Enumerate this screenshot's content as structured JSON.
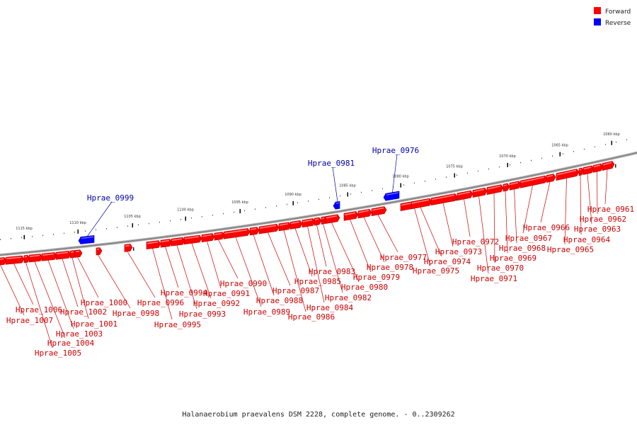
{
  "legend": [
    {
      "label": "Forward",
      "color": "#ff0000"
    },
    {
      "label": "Reverse",
      "color": "#0000ff"
    }
  ],
  "caption": "Halanaerobium praevalens DSM 2228, complete genome. - 0..2309262",
  "colors": {
    "forward": "#ff0000",
    "reverse": "#0000ff",
    "backbone": "#888888",
    "tick": "#000000",
    "label_forward": "#cc0000",
    "label_reverse": "#0000aa"
  },
  "ticks": [
    "1115 kbp",
    "1110 kbp",
    "1105 kbp",
    "1100 kbp",
    "1095 kbp",
    "1090 kbp",
    "1085 kbp",
    "1080 kbp",
    "1075 kbp",
    "1070 kbp",
    "1065 kbp",
    "1060 kbp"
  ],
  "genes": [
    {
      "label": "Hprae_1007",
      "strand": "forward"
    },
    {
      "label": "Hprae_1006",
      "strand": "forward"
    },
    {
      "label": "Hprae_1005",
      "strand": "forward"
    },
    {
      "label": "Hprae_1004",
      "strand": "forward"
    },
    {
      "label": "Hprae_1003",
      "strand": "forward"
    },
    {
      "label": "Hprae_1002",
      "strand": "forward"
    },
    {
      "label": "Hprae_1001",
      "strand": "forward"
    },
    {
      "label": "Hprae_1000",
      "strand": "forward"
    },
    {
      "label": "Hprae_0999",
      "strand": "reverse"
    },
    {
      "label": "Hprae_0998",
      "strand": "forward"
    },
    {
      "label": "Hprae_0996",
      "strand": "forward"
    },
    {
      "label": "Hprae_0995",
      "strand": "forward"
    },
    {
      "label": "Hprae_0994",
      "strand": "forward"
    },
    {
      "label": "Hprae_0993",
      "strand": "forward"
    },
    {
      "label": "Hprae_0992",
      "strand": "forward"
    },
    {
      "label": "Hprae_0991",
      "strand": "forward"
    },
    {
      "label": "Hprae_0990",
      "strand": "forward"
    },
    {
      "label": "Hprae_0989",
      "strand": "forward"
    },
    {
      "label": "Hprae_0988",
      "strand": "forward"
    },
    {
      "label": "Hprae_0987",
      "strand": "forward"
    },
    {
      "label": "Hprae_0986",
      "strand": "forward"
    },
    {
      "label": "Hprae_0985",
      "strand": "forward"
    },
    {
      "label": "Hprae_0984",
      "strand": "forward"
    },
    {
      "label": "Hprae_0983",
      "strand": "forward"
    },
    {
      "label": "Hprae_0982",
      "strand": "forward"
    },
    {
      "label": "Hprae_0981",
      "strand": "reverse"
    },
    {
      "label": "Hprae_0980",
      "strand": "forward"
    },
    {
      "label": "Hprae_0979",
      "strand": "forward"
    },
    {
      "label": "Hprae_0978",
      "strand": "forward"
    },
    {
      "label": "Hprae_0977",
      "strand": "forward"
    },
    {
      "label": "Hprae_0976",
      "strand": "reverse"
    },
    {
      "label": "Hprae_0975",
      "strand": "forward"
    },
    {
      "label": "Hprae_0974",
      "strand": "forward"
    },
    {
      "label": "Hprae_0973",
      "strand": "forward"
    },
    {
      "label": "Hprae_0972",
      "strand": "forward"
    },
    {
      "label": "Hprae_0971",
      "strand": "forward"
    },
    {
      "label": "Hprae_0970",
      "strand": "forward"
    },
    {
      "label": "Hprae_0969",
      "strand": "forward"
    },
    {
      "label": "Hprae_0968",
      "strand": "forward"
    },
    {
      "label": "Hprae_0967",
      "strand": "forward"
    },
    {
      "label": "Hprae_0966",
      "strand": "forward"
    },
    {
      "label": "Hprae_0965",
      "strand": "forward"
    },
    {
      "label": "Hprae_0964",
      "strand": "forward"
    },
    {
      "label": "Hprae_0963",
      "strand": "forward"
    },
    {
      "label": "Hprae_0962",
      "strand": "forward"
    },
    {
      "label": "Hprae_0961",
      "strand": "forward"
    }
  ]
}
